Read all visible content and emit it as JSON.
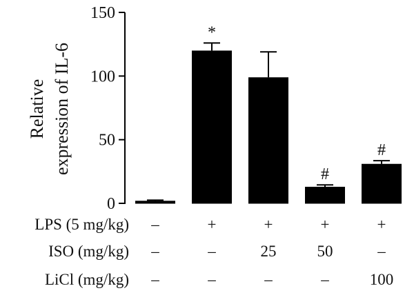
{
  "chart_data": {
    "type": "bar",
    "ylabel": [
      "Relative",
      "expression of IL-6"
    ],
    "ylim": [
      0,
      150
    ],
    "yticks": [
      0,
      50,
      100,
      150
    ],
    "bar_color": "#000000",
    "values": [
      2,
      120,
      99,
      13,
      31
    ],
    "errors": [
      0.5,
      6,
      20,
      1.5,
      2.5
    ],
    "significance": [
      "",
      "*",
      "",
      "#",
      "#"
    ],
    "treatment_rows": [
      {
        "label": "LPS (5 mg/kg)",
        "values": [
          "–",
          "+",
          "+",
          "+",
          "+"
        ]
      },
      {
        "label": "ISO (mg/kg)",
        "values": [
          "–",
          "–",
          "25",
          "50",
          "–"
        ]
      },
      {
        "label": "LiCl (mg/kg)",
        "values": [
          "–",
          "–",
          "–",
          "–",
          "100"
        ]
      }
    ]
  }
}
